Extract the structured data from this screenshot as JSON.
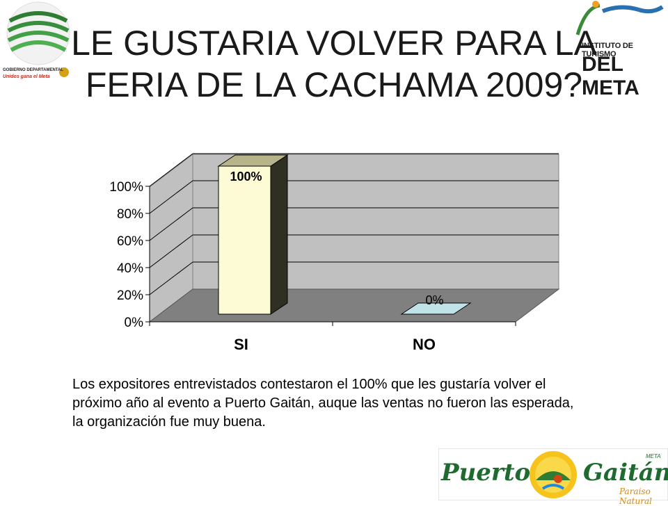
{
  "title_lines": [
    "LE GUSTARIA VOLVER PARA LA",
    "FERIA DE LA CACHAMA 2009?"
  ],
  "description": "Los expositores entrevistados contestaron el 100% que les gustaría volver el próximo año al evento a Puerto Gaitán, auque las ventas no fueron las esperada, la organización fue muy buena.",
  "logos": {
    "left_caption": "GOBIERNO DEPARTAMENTAL",
    "left_tagline": "Unidos gana el Meta",
    "right_line1": "INSTITUTO DE TURISMO",
    "right_line2": "DEL META",
    "bottom_word1": "Puerto",
    "bottom_word2": "Gaitán",
    "bottom_tagline": "Paraiso Natural",
    "bottom_meta": "META"
  },
  "chart_data": {
    "type": "bar",
    "categories": [
      "SI",
      "NO"
    ],
    "values": [
      100,
      0
    ],
    "data_labels": [
      "100%",
      "0%"
    ],
    "ylim": [
      0,
      100
    ],
    "yticks": [
      0,
      20,
      40,
      60,
      80,
      100
    ],
    "ytick_labels": [
      "0%",
      "20%",
      "40%",
      "60%",
      "80%",
      "100%"
    ],
    "three_d": true,
    "grid": true,
    "colors": {
      "bar_SI": "#fdfbd6",
      "bar_NO": "#bfe3e6",
      "back_wall": "#c0c0c0",
      "floor": "#808080"
    }
  }
}
